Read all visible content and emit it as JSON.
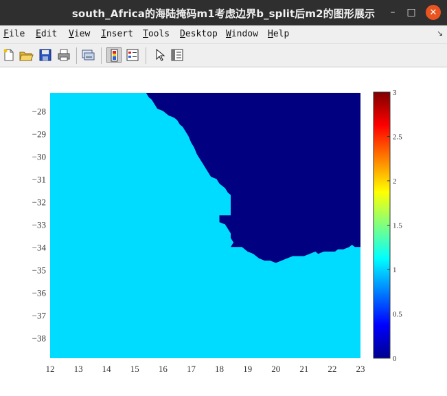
{
  "window": {
    "title": "south_Africa的海陆掩码m1考虑边界b_split后m2的图形展示",
    "minimize_icon": "minimize-icon",
    "maximize_icon": "maximize-icon",
    "close_icon": "close-icon"
  },
  "menu": [
    {
      "key": "F",
      "rest": "ile"
    },
    {
      "key": "E",
      "rest": "dit"
    },
    {
      "key": "V",
      "rest": "iew"
    },
    {
      "key": "I",
      "rest": "nsert"
    },
    {
      "key": "T",
      "rest": "ools"
    },
    {
      "key": "D",
      "rest": "esktop"
    },
    {
      "key": "W",
      "rest": "indow"
    },
    {
      "key": "H",
      "rest": "elp"
    }
  ],
  "toolbar": [
    "new-figure-icon",
    "open-file-icon",
    "save-icon",
    "print-icon",
    "link-plot-icon",
    "insert-colorbar-icon",
    "insert-legend-icon",
    "edit-plot-arrow-icon",
    "property-inspector-icon"
  ],
  "colors": {
    "land": "#000080",
    "sea": "#00dcff",
    "titlebar": "#2f2f2f",
    "close_button": "#e95420"
  },
  "chart_data": {
    "type": "heatmap",
    "title": "",
    "xlabel": "",
    "ylabel": "",
    "xlim": [
      12,
      23
    ],
    "ylim": [
      -38.9,
      -27.2
    ],
    "x_ticks": [
      "12",
      "13",
      "14",
      "15",
      "16",
      "17",
      "18",
      "19",
      "20",
      "21",
      "22",
      "23"
    ],
    "y_ticks": [
      "-28",
      "-29",
      "-30",
      "-31",
      "-32",
      "-33",
      "-34",
      "-35",
      "-36",
      "-37",
      "-38"
    ],
    "y_reversed": true,
    "grid": false,
    "values_description": "mask values: 0 = land (dark blue), 1 = sea (cyan)",
    "boundary": [
      [
        15.4,
        -27.2
      ],
      [
        15.5,
        -27.4
      ],
      [
        15.6,
        -27.5
      ],
      [
        15.7,
        -27.7
      ],
      [
        15.8,
        -27.9
      ],
      [
        16.0,
        -28.0
      ],
      [
        16.1,
        -28.1
      ],
      [
        16.2,
        -28.2
      ],
      [
        16.4,
        -28.3
      ],
      [
        16.5,
        -28.4
      ],
      [
        16.6,
        -28.6
      ],
      [
        16.7,
        -28.7
      ],
      [
        16.8,
        -28.9
      ],
      [
        16.9,
        -29.1
      ],
      [
        17.0,
        -29.4
      ],
      [
        17.1,
        -29.6
      ],
      [
        17.2,
        -29.9
      ],
      [
        17.3,
        -30.1
      ],
      [
        17.4,
        -30.3
      ],
      [
        17.5,
        -30.5
      ],
      [
        17.6,
        -30.7
      ],
      [
        17.7,
        -30.9
      ],
      [
        17.9,
        -31.0
      ],
      [
        18.0,
        -31.2
      ],
      [
        18.2,
        -31.4
      ],
      [
        18.3,
        -31.6
      ],
      [
        18.4,
        -31.7
      ],
      [
        18.4,
        -32.6
      ],
      [
        18.0,
        -32.6
      ],
      [
        18.0,
        -32.9
      ],
      [
        18.2,
        -33.0
      ],
      [
        18.3,
        -33.2
      ],
      [
        18.4,
        -33.4
      ],
      [
        18.4,
        -33.6
      ],
      [
        18.5,
        -33.8
      ],
      [
        18.4,
        -34.0
      ],
      [
        18.6,
        -34.0
      ],
      [
        18.8,
        -34.0
      ],
      [
        18.9,
        -34.1
      ],
      [
        19.0,
        -34.2
      ],
      [
        19.2,
        -34.3
      ],
      [
        19.4,
        -34.5
      ],
      [
        19.6,
        -34.6
      ],
      [
        19.8,
        -34.6
      ],
      [
        20.0,
        -34.7
      ],
      [
        20.2,
        -34.6
      ],
      [
        20.4,
        -34.5
      ],
      [
        20.6,
        -34.4
      ],
      [
        21.0,
        -34.4
      ],
      [
        21.2,
        -34.3
      ],
      [
        21.4,
        -34.2
      ],
      [
        21.5,
        -34.3
      ],
      [
        21.7,
        -34.2
      ],
      [
        21.9,
        -34.2
      ],
      [
        22.1,
        -34.2
      ],
      [
        22.2,
        -34.1
      ],
      [
        22.4,
        -34.1
      ],
      [
        22.6,
        -34.0
      ],
      [
        22.7,
        -33.9
      ],
      [
        22.8,
        -34.0
      ],
      [
        23.0,
        -34.0
      ]
    ],
    "colorbar": {
      "ticks": [
        "0",
        "0.5",
        "1",
        "1.5",
        "2",
        "2.5",
        "3"
      ],
      "range": [
        0,
        3
      ],
      "colormap": "jet"
    }
  }
}
